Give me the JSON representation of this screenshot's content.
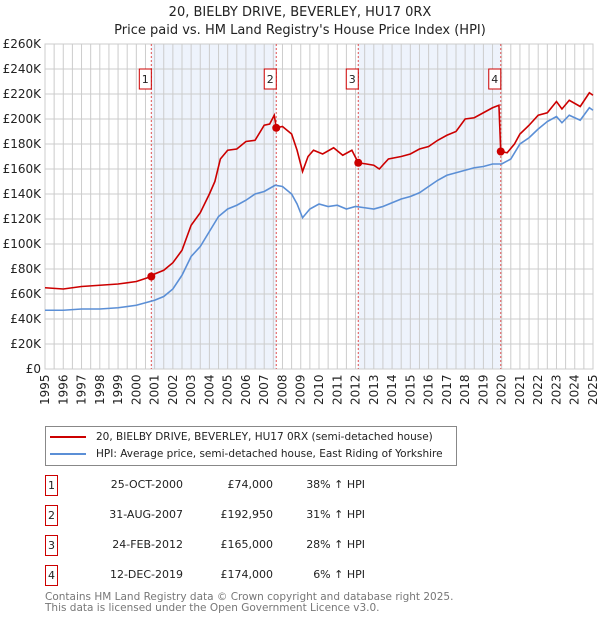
{
  "title": "20, BIELBY DRIVE, BEVERLEY, HU17 0RX",
  "subtitle": "Price paid vs. HM Land Registry's House Price Index (HPI)",
  "legend": {
    "red": "20, BIELBY DRIVE, BEVERLEY, HU17 0RX (semi-detached house)",
    "blue": "HPI: Average price, semi-detached house, East Riding of Yorkshire"
  },
  "sales": [
    {
      "n": "1",
      "date": "25-OCT-2000",
      "price": "£74,000",
      "hpi": "38% ↑ HPI"
    },
    {
      "n": "2",
      "date": "31-AUG-2007",
      "price": "£192,950",
      "hpi": "31% ↑ HPI"
    },
    {
      "n": "3",
      "date": "24-FEB-2012",
      "price": "£165,000",
      "hpi": "28% ↑ HPI"
    },
    {
      "n": "4",
      "date": "12-DEC-2019",
      "price": "£174,000",
      "hpi": "6% ↑ HPI"
    }
  ],
  "footer": {
    "line1": "Contains HM Land Registry data © Crown copyright and database right 2025.",
    "line2": "This data is licensed under the Open Government Licence v3.0."
  },
  "chart_data": {
    "type": "line",
    "xlim": [
      1995,
      2025
    ],
    "ylim": [
      0,
      260000
    ],
    "yticks": [
      "£0",
      "£20K",
      "£40K",
      "£60K",
      "£80K",
      "£100K",
      "£120K",
      "£140K",
      "£160K",
      "£180K",
      "£200K",
      "£220K",
      "£240K",
      "£260K"
    ],
    "xticks": [
      "1995",
      "1996",
      "1997",
      "1998",
      "1999",
      "2000",
      "2001",
      "2002",
      "2003",
      "2004",
      "2005",
      "2006",
      "2007",
      "2008",
      "2009",
      "2010",
      "2011",
      "2012",
      "2013",
      "2014",
      "2015",
      "2016",
      "2017",
      "2018",
      "2019",
      "2020",
      "2021",
      "2022",
      "2023",
      "2024",
      "2025"
    ],
    "sale_points": [
      {
        "label": "1",
        "x": 2000.82,
        "y": 74000
      },
      {
        "label": "2",
        "x": 2007.66,
        "y": 192950
      },
      {
        "label": "3",
        "x": 2012.15,
        "y": 165000
      },
      {
        "label": "4",
        "x": 2019.95,
        "y": 174000
      }
    ],
    "colors": {
      "red": "#cc0000",
      "blue": "#5b8fd6",
      "shade": "#eef3fc"
    },
    "series": [
      {
        "name": "property",
        "color": "#cc0000",
        "points": [
          [
            1995,
            65000
          ],
          [
            1996,
            64000
          ],
          [
            1997,
            66000
          ],
          [
            1998,
            67000
          ],
          [
            1999,
            68000
          ],
          [
            2000,
            70000
          ],
          [
            2000.82,
            74000
          ],
          [
            2001,
            76000
          ],
          [
            2001.5,
            79000
          ],
          [
            2002,
            85000
          ],
          [
            2002.5,
            95000
          ],
          [
            2003,
            115000
          ],
          [
            2003.5,
            125000
          ],
          [
            2004,
            140000
          ],
          [
            2004.3,
            150000
          ],
          [
            2004.6,
            168000
          ],
          [
            2005,
            175000
          ],
          [
            2005.5,
            176000
          ],
          [
            2006,
            182000
          ],
          [
            2006.5,
            183000
          ],
          [
            2007,
            195000
          ],
          [
            2007.3,
            196000
          ],
          [
            2007.55,
            203000
          ],
          [
            2007.66,
            192950
          ],
          [
            2008,
            194000
          ],
          [
            2008.5,
            188000
          ],
          [
            2008.8,
            175000
          ],
          [
            2009.1,
            158000
          ],
          [
            2009.4,
            170000
          ],
          [
            2009.7,
            175000
          ],
          [
            2010.2,
            172000
          ],
          [
            2010.8,
            177000
          ],
          [
            2011.3,
            171000
          ],
          [
            2011.8,
            175000
          ],
          [
            2012.15,
            165000
          ],
          [
            2012.6,
            164000
          ],
          [
            2013,
            163000
          ],
          [
            2013.3,
            160000
          ],
          [
            2013.8,
            168000
          ],
          [
            2014.5,
            170000
          ],
          [
            2015,
            172000
          ],
          [
            2015.5,
            176000
          ],
          [
            2016,
            178000
          ],
          [
            2016.5,
            183000
          ],
          [
            2017,
            187000
          ],
          [
            2017.5,
            190000
          ],
          [
            2018,
            200000
          ],
          [
            2018.5,
            201000
          ],
          [
            2019,
            205000
          ],
          [
            2019.5,
            209000
          ],
          [
            2019.85,
            211000
          ],
          [
            2019.95,
            174000
          ],
          [
            2020.3,
            173000
          ],
          [
            2020.7,
            180000
          ],
          [
            2021,
            188000
          ],
          [
            2021.5,
            195000
          ],
          [
            2022,
            203000
          ],
          [
            2022.5,
            205000
          ],
          [
            2023,
            214000
          ],
          [
            2023.3,
            208000
          ],
          [
            2023.7,
            215000
          ],
          [
            2024.3,
            210000
          ],
          [
            2024.8,
            221000
          ],
          [
            2025,
            219000
          ]
        ]
      },
      {
        "name": "hpi",
        "color": "#5b8fd6",
        "points": [
          [
            1995,
            47000
          ],
          [
            1996,
            47000
          ],
          [
            1997,
            48000
          ],
          [
            1998,
            48000
          ],
          [
            1999,
            49000
          ],
          [
            2000,
            51000
          ],
          [
            2001,
            55000
          ],
          [
            2001.5,
            58000
          ],
          [
            2002,
            64000
          ],
          [
            2002.5,
            75000
          ],
          [
            2003,
            90000
          ],
          [
            2003.5,
            98000
          ],
          [
            2004,
            110000
          ],
          [
            2004.5,
            122000
          ],
          [
            2005,
            128000
          ],
          [
            2005.5,
            131000
          ],
          [
            2006,
            135000
          ],
          [
            2006.5,
            140000
          ],
          [
            2007,
            142000
          ],
          [
            2007.6,
            147000
          ],
          [
            2008,
            146000
          ],
          [
            2008.5,
            140000
          ],
          [
            2008.8,
            132000
          ],
          [
            2009.1,
            121000
          ],
          [
            2009.5,
            128000
          ],
          [
            2010,
            132000
          ],
          [
            2010.5,
            130000
          ],
          [
            2011,
            131000
          ],
          [
            2011.5,
            128000
          ],
          [
            2012,
            130000
          ],
          [
            2012.5,
            129000
          ],
          [
            2013,
            128000
          ],
          [
            2013.5,
            130000
          ],
          [
            2014,
            133000
          ],
          [
            2014.5,
            136000
          ],
          [
            2015,
            138000
          ],
          [
            2015.5,
            141000
          ],
          [
            2016,
            146000
          ],
          [
            2016.5,
            151000
          ],
          [
            2017,
            155000
          ],
          [
            2017.5,
            157000
          ],
          [
            2018,
            159000
          ],
          [
            2018.5,
            161000
          ],
          [
            2019,
            162000
          ],
          [
            2019.5,
            164000
          ],
          [
            2020,
            164000
          ],
          [
            2020.5,
            168000
          ],
          [
            2021,
            180000
          ],
          [
            2021.5,
            185000
          ],
          [
            2022,
            192000
          ],
          [
            2022.5,
            198000
          ],
          [
            2023,
            202000
          ],
          [
            2023.3,
            197000
          ],
          [
            2023.7,
            203000
          ],
          [
            2024.3,
            199000
          ],
          [
            2024.8,
            209000
          ],
          [
            2025,
            207000
          ]
        ]
      }
    ]
  }
}
